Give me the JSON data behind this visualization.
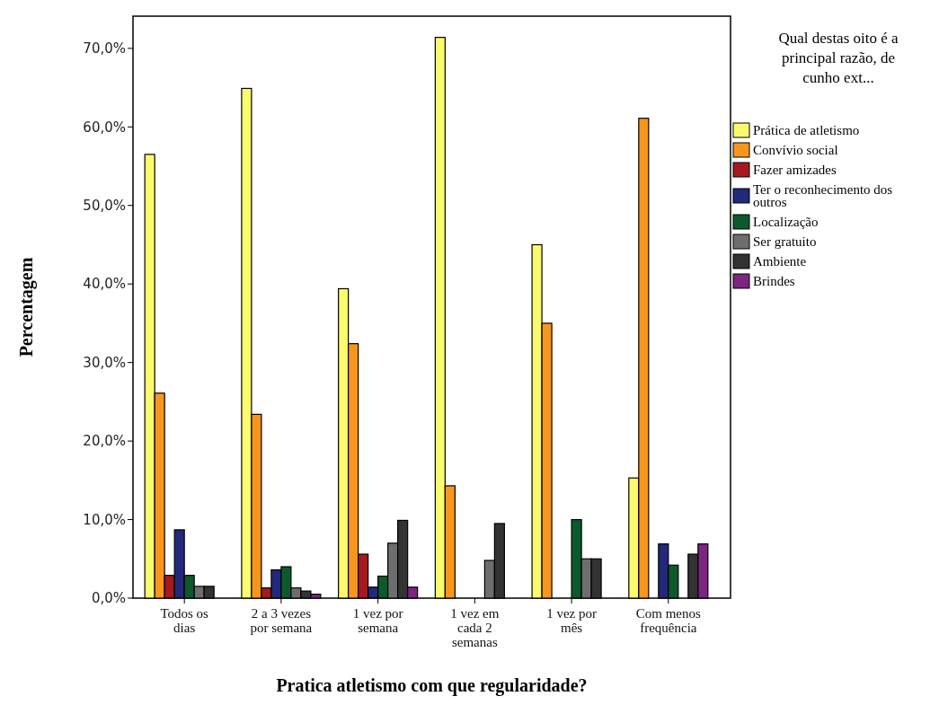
{
  "chart_data": {
    "type": "bar",
    "xlabel": "Pratica atletismo com que regularidade?",
    "ylabel": "Percentagem",
    "legend_title": "Qual destas oito é a principal razão, de cunho ext...",
    "categories": [
      "Todos os dias",
      "2 a 3 vezes por semana",
      "1 vez por semana",
      "1 vez em cada 2 semanas",
      "1 vez por mês",
      "Com menos frequência"
    ],
    "series": [
      {
        "name": "Prática de atletismo",
        "color": "#fafa6e",
        "values": [
          56.5,
          64.9,
          39.4,
          71.4,
          45.0,
          15.3
        ]
      },
      {
        "name": "Convívio social",
        "color": "#f7961e",
        "values": [
          26.1,
          23.4,
          32.4,
          14.3,
          35.0,
          61.1
        ]
      },
      {
        "name": "Fazer amizades",
        "color": "#a6191e",
        "values": [
          2.9,
          1.3,
          5.6,
          0,
          0,
          0
        ]
      },
      {
        "name": "Ter o reconhecimento dos outros",
        "color": "#22287a",
        "values": [
          8.7,
          3.6,
          1.4,
          0,
          0,
          6.9
        ]
      },
      {
        "name": "Localização",
        "color": "#0c5a2c",
        "values": [
          2.9,
          4.0,
          2.8,
          0,
          10.0,
          4.2
        ]
      },
      {
        "name": "Ser gratuito",
        "color": "#6e6e6e",
        "values": [
          1.5,
          1.3,
          7.0,
          4.8,
          5.0,
          0
        ]
      },
      {
        "name": "Ambiente",
        "color": "#333333",
        "values": [
          1.5,
          0.9,
          9.9,
          9.5,
          5.0,
          5.6
        ]
      },
      {
        "name": "Brindes",
        "color": "#7c2581",
        "values": [
          0,
          0.5,
          1.4,
          0,
          0,
          6.9
        ]
      }
    ],
    "ylim": [
      0,
      74.1
    ],
    "yticks": [
      {
        "value": 0,
        "label": "0,0%"
      },
      {
        "value": 10,
        "label": "10,0%"
      },
      {
        "value": 20,
        "label": "20,0%"
      },
      {
        "value": 30,
        "label": "30,0%"
      },
      {
        "value": 40,
        "label": "40,0%"
      },
      {
        "value": 50,
        "label": "50,0%"
      },
      {
        "value": 60,
        "label": "60,0%"
      },
      {
        "value": 70,
        "label": "70,0%"
      }
    ],
    "legend": "right"
  }
}
